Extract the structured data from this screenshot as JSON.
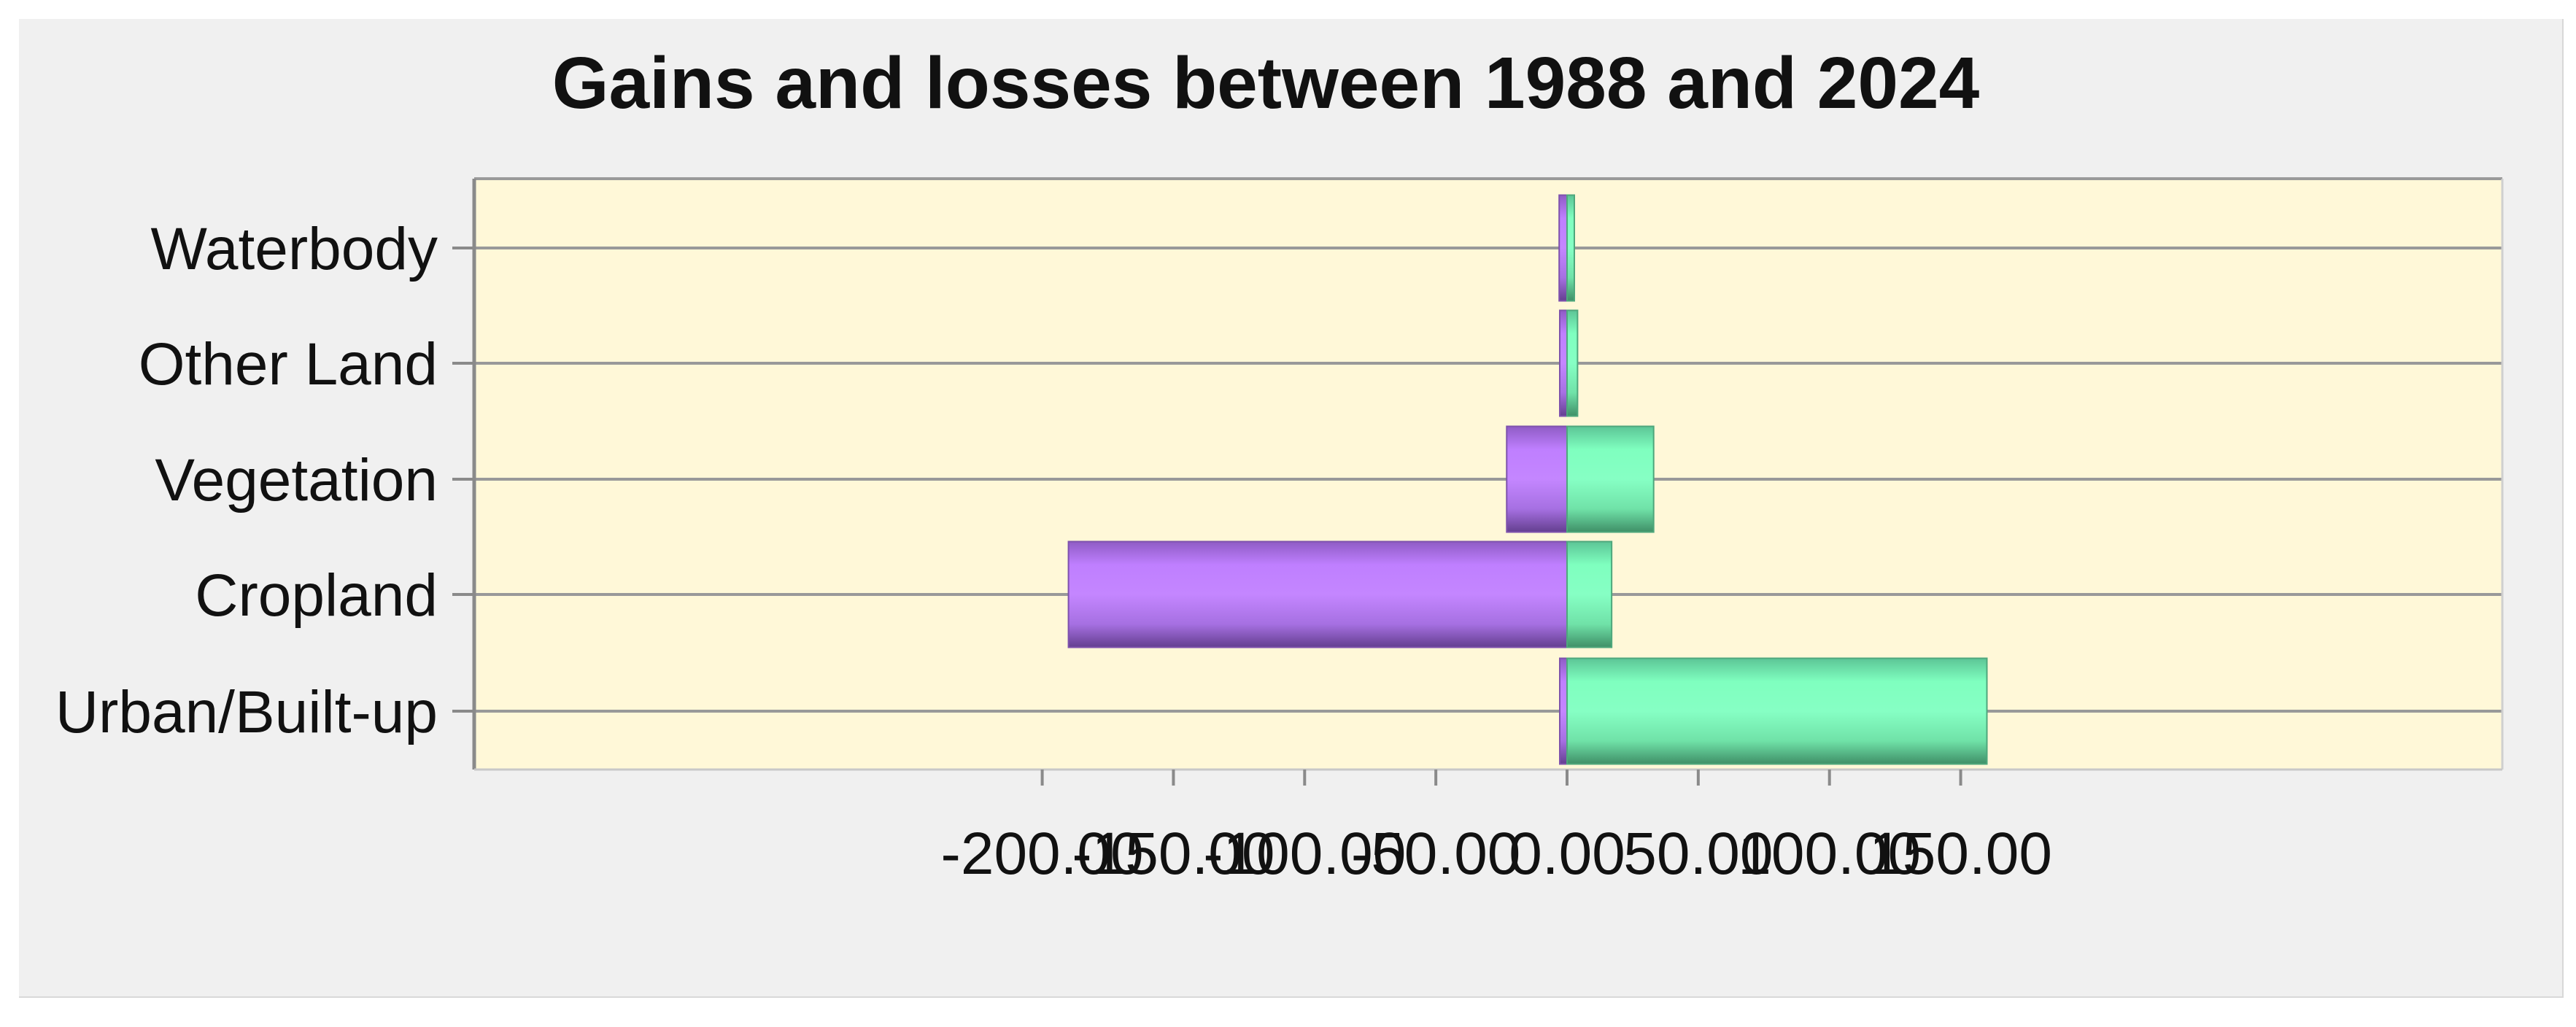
{
  "chart_data": {
    "type": "bar",
    "orientation": "horizontal",
    "title": "Gains and losses between 1988 and 2024",
    "xlabel": "",
    "ylabel": "",
    "categories": [
      "Waterbody",
      "Other Land",
      "Vegetation",
      "Cropland",
      "Urban/Built-up"
    ],
    "series": [
      {
        "name": "",
        "values": [
          -3,
          -1,
          -23,
          -190,
          -2
        ]
      },
      {
        "name": "",
        "values": [
          2,
          4,
          33,
          17,
          160
        ]
      }
    ],
    "xlim": [
      -210,
      180
    ],
    "x_ticks": [
      -200,
      -150,
      -100,
      -50,
      0,
      50,
      100,
      150
    ],
    "x_tick_labels": [
      "-200.00",
      "-150.00",
      "-100.00",
      "-50.00",
      "0.00",
      "50.00",
      "100.00",
      "150.00"
    ],
    "grid": "horizontal",
    "legend": "none",
    "colors": {
      "loss": "#bf7fff",
      "gain": "#7fffbf",
      "plot_background": "#fff8d8",
      "panel_background": "#f0f0f0",
      "gridline": "#999999"
    }
  }
}
